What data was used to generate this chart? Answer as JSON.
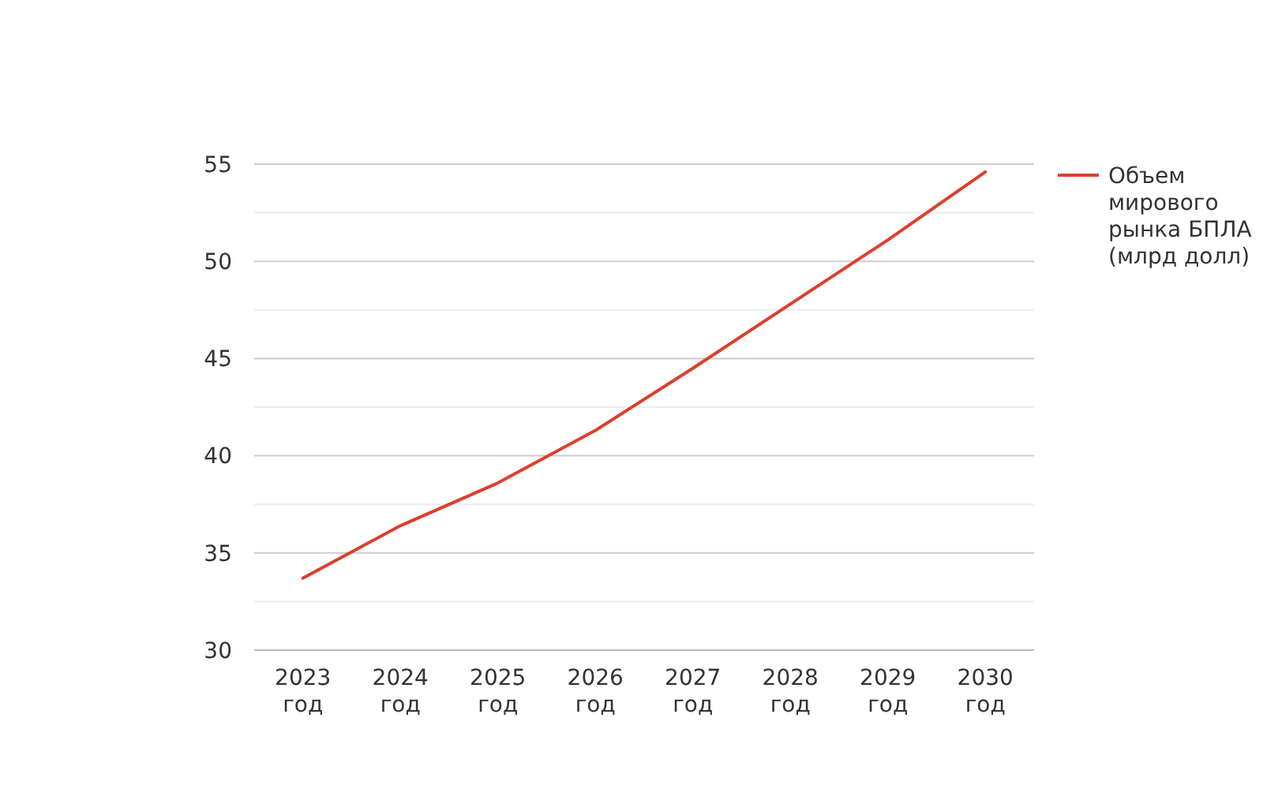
{
  "chart_data": {
    "type": "line",
    "categories": [
      "2023 год",
      "2024 год",
      "2025 год",
      "2026 год",
      "2027 год",
      "2028 год",
      "2029 год",
      "2030 год"
    ],
    "series": [
      {
        "name": "Объем мирового рынка БПЛА (млрд долл)",
        "color": "#dc3f2e",
        "values": [
          33.7,
          36.4,
          38.6,
          41.3,
          44.5,
          47.8,
          51.1,
          54.6
        ]
      }
    ],
    "ylim": [
      30,
      55
    ],
    "yticks": [
      30,
      {
        "value": 32.5,
        "label": null
      },
      35,
      {
        "value": 37.5,
        "label": null
      },
      40,
      {
        "value": 42.5,
        "label": null
      },
      45,
      {
        "value": 47.5,
        "label": null
      },
      50,
      {
        "value": 52.5,
        "label": null
      },
      55
    ],
    "grid": "y",
    "legend": "right",
    "marker": "none",
    "line_style": "solid"
  }
}
